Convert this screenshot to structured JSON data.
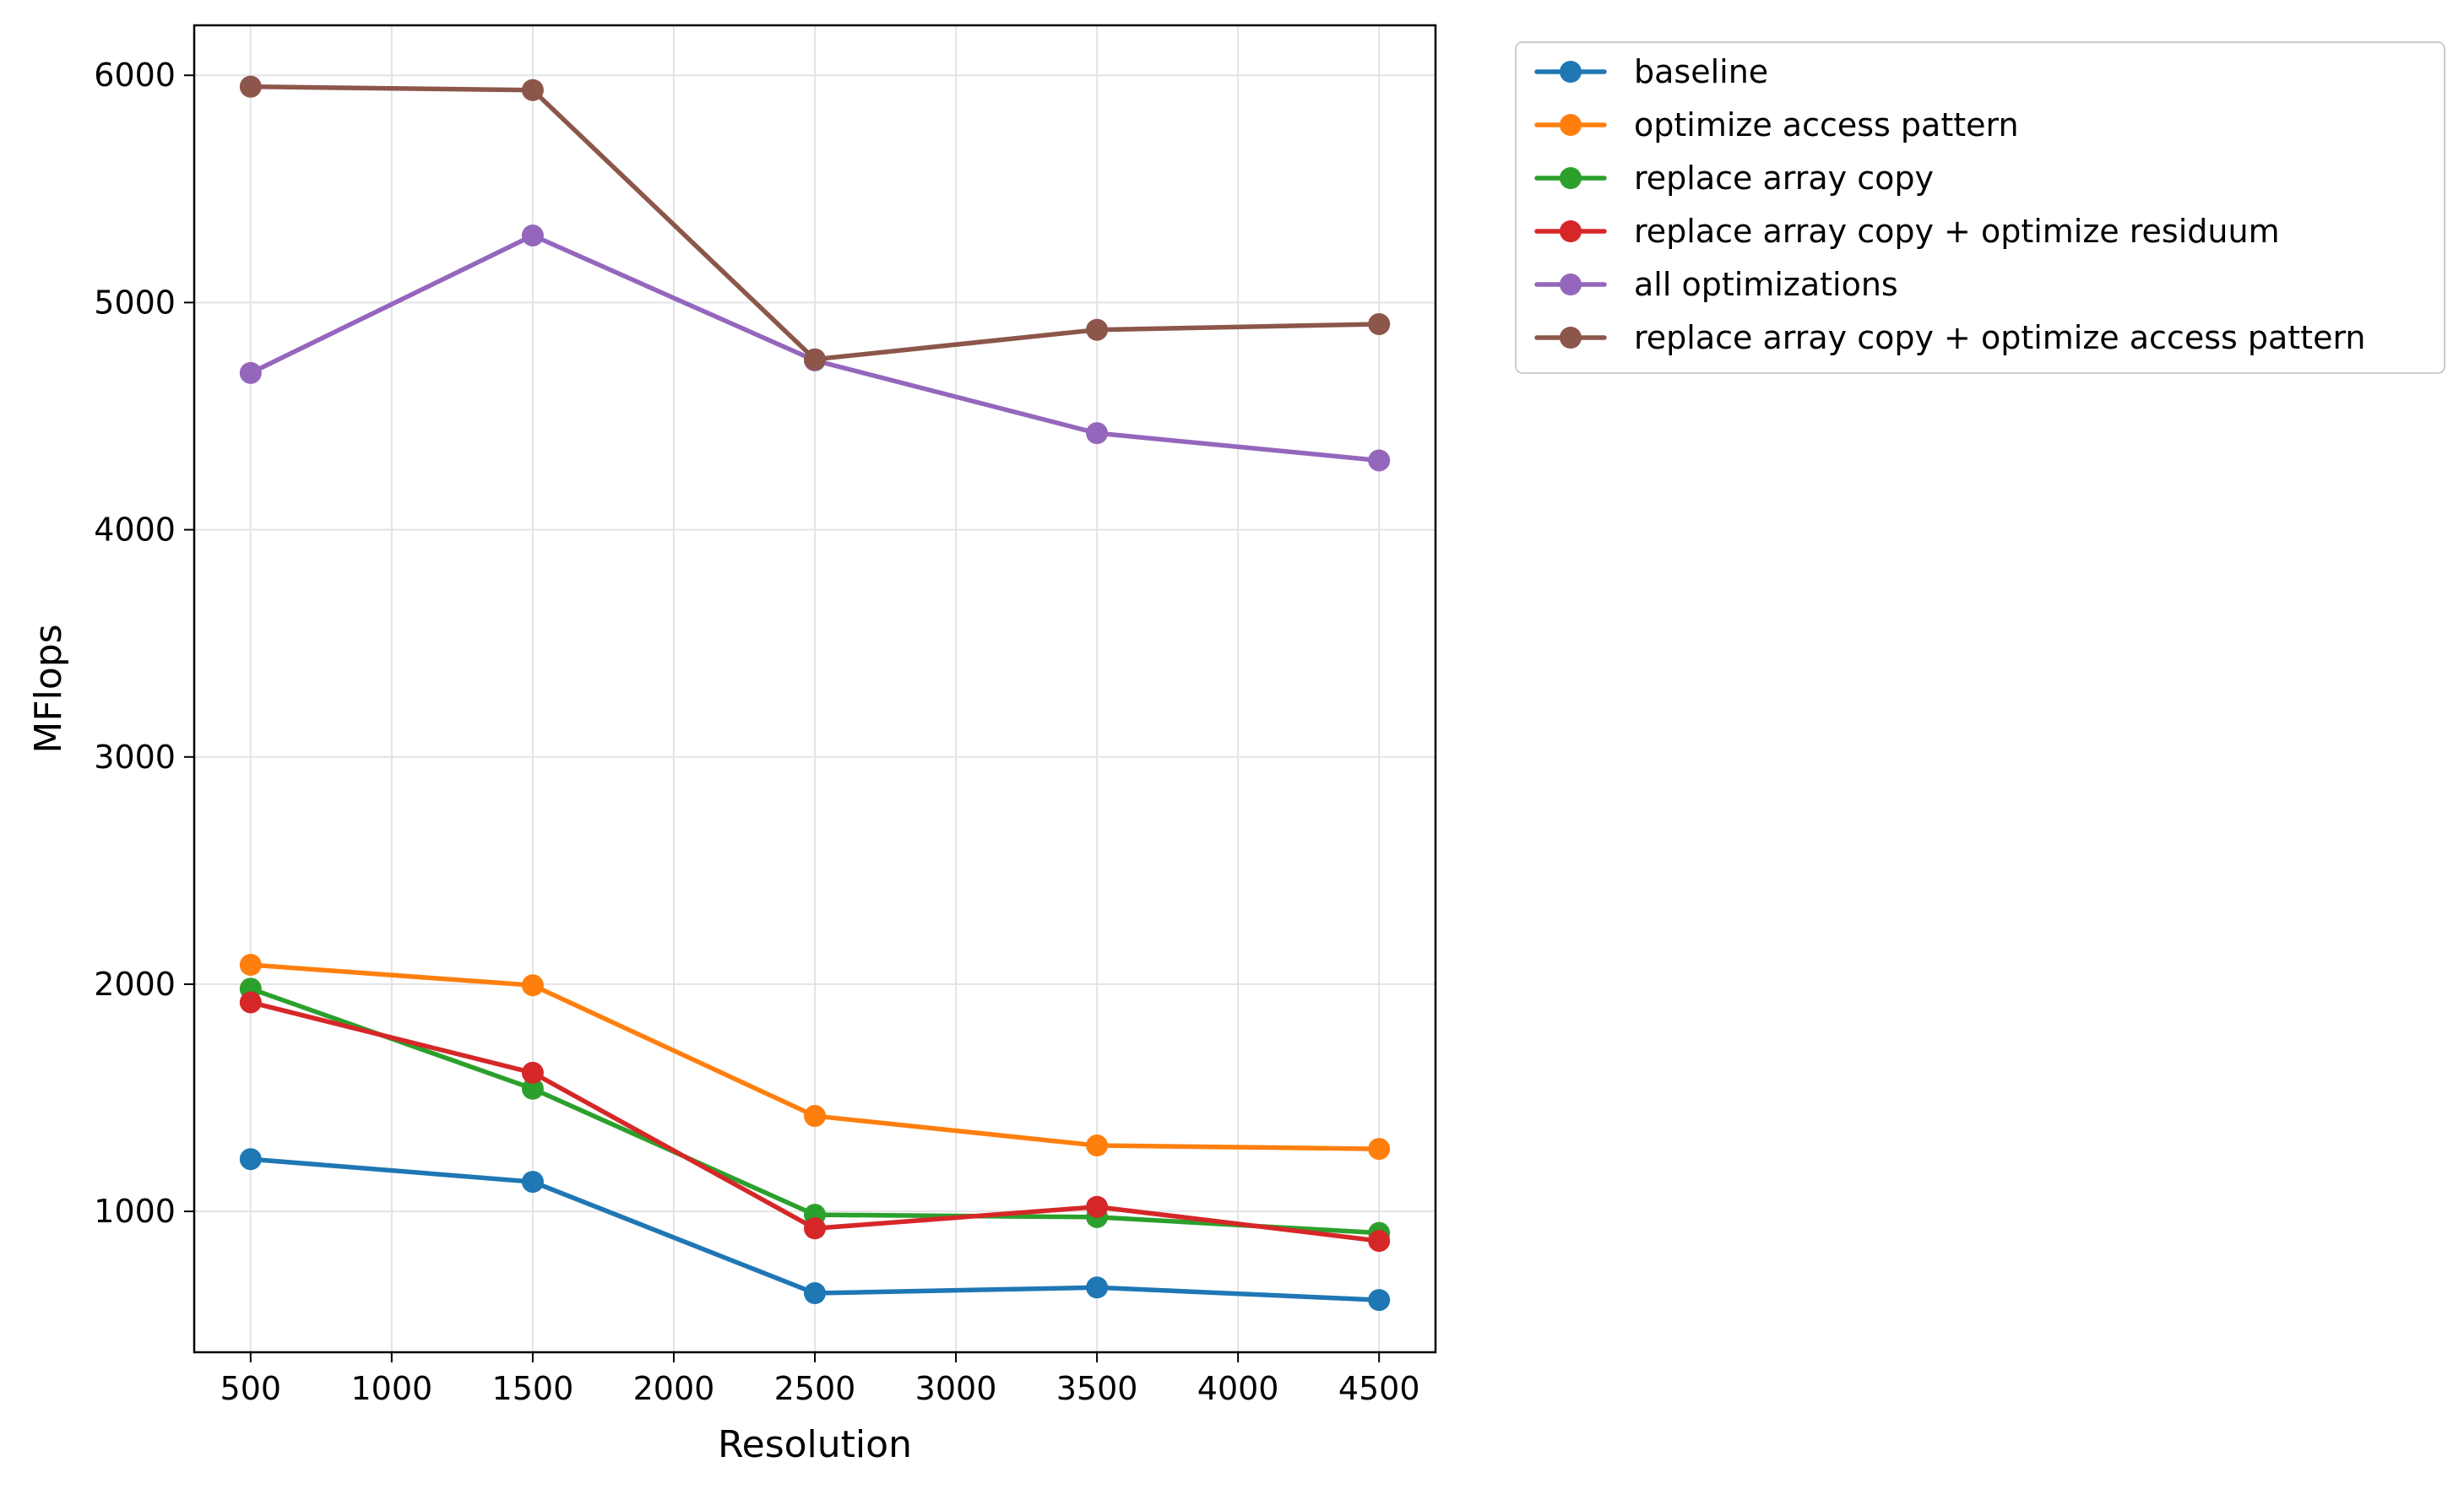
{
  "chart_data": {
    "type": "line",
    "title": "",
    "xlabel": "Resolution",
    "ylabel": "MFlops",
    "x": [
      500,
      1500,
      2500,
      3500,
      4500
    ],
    "xlim": [
      300,
      4700
    ],
    "ylim": [
      380,
      6220
    ],
    "xticks": [
      500,
      1000,
      1500,
      2000,
      2500,
      3000,
      3500,
      4000,
      4500
    ],
    "yticks": [
      1000,
      2000,
      3000,
      4000,
      5000,
      6000
    ],
    "grid": true,
    "legend_position": "outside-top-right",
    "series": [
      {
        "name": "baseline",
        "color": "#1f77b4",
        "values": [
          1230,
          1130,
          640,
          665,
          610
        ]
      },
      {
        "name": "optimize access pattern",
        "color": "#ff7f0e",
        "values": [
          2085,
          1995,
          1420,
          1290,
          1275
        ]
      },
      {
        "name": "replace array copy",
        "color": "#2ca02c",
        "values": [
          1980,
          1540,
          985,
          975,
          905
        ]
      },
      {
        "name": "replace array copy + optimize residuum",
        "color": "#d62728",
        "values": [
          1920,
          1610,
          925,
          1020,
          870
        ]
      },
      {
        "name": "all optimizations",
        "color": "#9467bd",
        "values": [
          4690,
          5295,
          4745,
          4425,
          4305
        ]
      },
      {
        "name": "replace array copy + optimize access pattern",
        "color": "#8c564b",
        "values": [
          5950,
          5935,
          4750,
          4880,
          4905
        ]
      }
    ]
  }
}
